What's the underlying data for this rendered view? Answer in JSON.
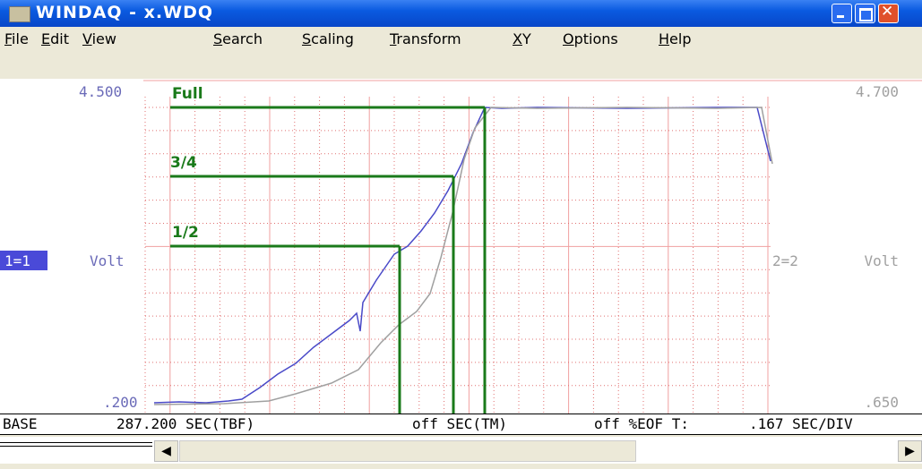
{
  "window": {
    "title": "WINDAQ - x.WDQ"
  },
  "menu": [
    "File",
    "Edit",
    "View",
    "Search",
    "Scaling",
    "Transform",
    "XY",
    "Options",
    "Help"
  ],
  "plot": {
    "left": {
      "top": "4.500",
      "bottom": ".200",
      "channel": "1=1",
      "unit": "Volt"
    },
    "right": {
      "top": "4.700",
      "bottom": ".650",
      "channel": "2=2",
      "unit": "Volt"
    },
    "annotations": [
      "Full",
      "3/4",
      "1/2"
    ]
  },
  "status": [
    "BASE",
    "287.200 SEC(TBF)",
    "off SEC(TM)",
    "off %EOF T:",
    ".167 SEC/DIV"
  ]
}
